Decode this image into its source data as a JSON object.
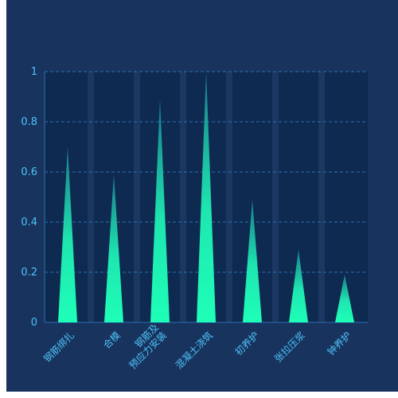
{
  "chart_data": {
    "type": "bar",
    "bar_shape": "triangle",
    "categories": [
      "钢筋绑扎",
      "合模",
      "钢筋及\n预应力安装",
      "混凝土浇筑",
      "初养护",
      "张拉压浆",
      "钟养护"
    ],
    "values": [
      0.7,
      0.59,
      0.89,
      1.0,
      0.49,
      0.29,
      0.19
    ],
    "ylim": [
      0,
      1
    ],
    "yticks": [
      0,
      0.2,
      0.4,
      0.6,
      0.8,
      1
    ],
    "grid": true,
    "colors": {
      "background": "#17335e",
      "plot_background": "#0f2a50",
      "band": "#1a3862",
      "bar_top": "#1a7a8a",
      "bar_bottom": "#1effb8",
      "grid": "#2c6fae",
      "tick_text": "#4fc3f7"
    }
  }
}
